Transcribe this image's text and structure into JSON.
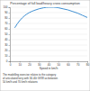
{
  "chart_data": {
    "type": "line",
    "title": "Percentage of full load/heavy cross consumption",
    "x_label": "Speed in km/h",
    "x": [
      5,
      10,
      15,
      20,
      25,
      30,
      35,
      40,
      45,
      50,
      55,
      60,
      65,
      70,
      75,
      80
    ],
    "values": [
      62,
      75,
      84,
      90,
      94,
      97,
      99,
      100,
      100,
      99,
      97,
      95,
      92,
      89,
      85,
      81
    ],
    "color": "#3f8fd2",
    "xlim": [
      0,
      80
    ],
    "xticks": [
      0,
      10,
      20,
      30,
      40,
      50,
      60,
      70,
      80
    ],
    "ylim": [
      0,
      100
    ],
    "yticks": [
      0,
      10,
      20,
      30,
      40,
      50,
      60,
      70,
      80,
      90,
      100
    ],
    "grid": true,
    "annotations": [
      "The modelling exercise relates to the category",
      "of articulated lorry with 34-40t GVW as between",
      "50 km/h and 70 km/h relations"
    ]
  }
}
